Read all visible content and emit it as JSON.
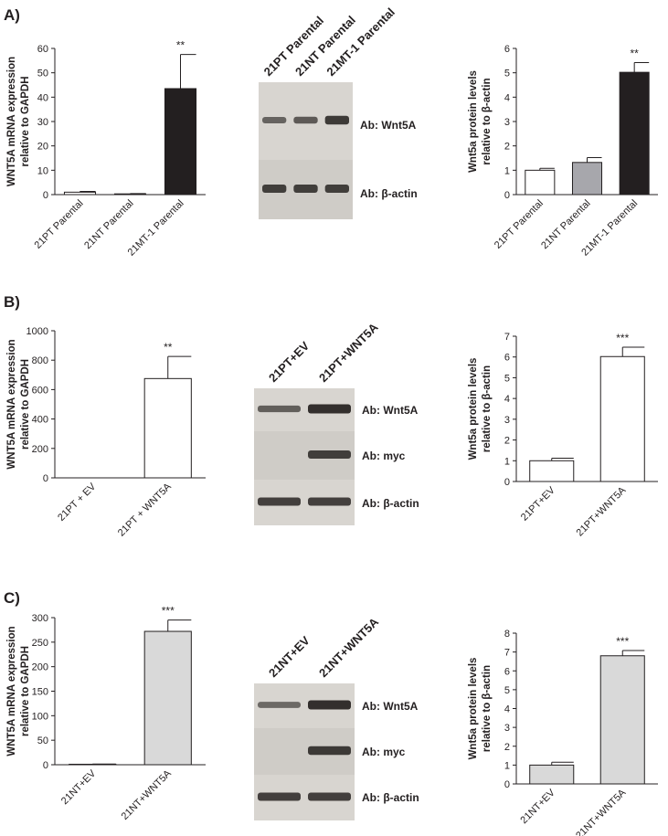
{
  "panels": [
    "A)",
    "B)",
    "C)"
  ],
  "blots": [
    {
      "lanes": [
        "21PT Parental",
        "21NT Parental",
        "21MT-1 Parental"
      ],
      "antibodies": [
        "Ab: Wnt5A",
        "Ab: β-actin"
      ]
    },
    {
      "lanes": [
        "21PT+EV",
        "21PT+WNT5A"
      ],
      "antibodies": [
        "Ab: Wnt5A",
        "Ab: myc",
        "Ab: β-actin"
      ]
    },
    {
      "lanes": [
        "21NT+EV",
        "21NT+WNT5A"
      ],
      "antibodies": [
        "Ab: Wnt5A",
        "Ab: myc",
        "Ab: β-actin"
      ]
    }
  ],
  "chart_data": [
    {
      "type": "bar",
      "ylabel": [
        "WNT5A mRNA expression",
        "relative to GAPDH"
      ],
      "categories": [
        "21PT Parental",
        "21NT Parental",
        "21MT-1 Parental"
      ],
      "values": [
        1,
        0.3,
        43.5
      ],
      "errors": [
        0.3,
        0.1,
        14
      ],
      "colors": [
        "#ffffff",
        "#ffffff",
        "#231f20"
      ],
      "annotations": [
        null,
        null,
        "**"
      ],
      "ylim": [
        0,
        60
      ],
      "yticks": [
        0,
        10,
        20,
        30,
        40,
        50,
        60
      ]
    },
    {
      "type": "bar",
      "ylabel": [
        "Wnt5a protein levels",
        "relative to β-actin"
      ],
      "categories": [
        "21PT Parental",
        "21NT Parental",
        "21MT-1 Parental"
      ],
      "values": [
        1,
        1.32,
        5.02
      ],
      "errors": [
        0.08,
        0.2,
        0.4
      ],
      "colors": [
        "#ffffff",
        "#a7a7ac",
        "#231f20"
      ],
      "annotations": [
        null,
        null,
        "**"
      ],
      "ylim": [
        0,
        6
      ],
      "yticks": [
        0,
        1,
        2,
        3,
        4,
        5,
        6
      ]
    },
    {
      "type": "bar",
      "ylabel": [
        "WNT5A mRNA expression",
        "relative to GAPDH"
      ],
      "categories": [
        "21PT + EV",
        "21PT + WNT5A"
      ],
      "values": [
        0,
        675
      ],
      "errors": [
        0,
        150
      ],
      "colors": [
        "#ffffff",
        "#ffffff"
      ],
      "annotations": [
        null,
        "**"
      ],
      "ylim": [
        0,
        1000
      ],
      "yticks": [
        0,
        200,
        400,
        600,
        800,
        1000
      ]
    },
    {
      "type": "bar",
      "ylabel": [
        "Wnt5a protein levels",
        "relative to β-actin"
      ],
      "categories": [
        "21PT+EV",
        "21PT+WNT5A"
      ],
      "values": [
        1,
        6.02
      ],
      "errors": [
        0.12,
        0.45
      ],
      "colors": [
        "#ffffff",
        "#ffffff"
      ],
      "annotations": [
        null,
        "***"
      ],
      "ylim": [
        0,
        7
      ],
      "yticks": [
        0,
        1,
        2,
        3,
        4,
        5,
        6,
        7
      ]
    },
    {
      "type": "bar",
      "ylabel": [
        "WNT5A mRNA expression",
        "relative to GAPDH"
      ],
      "categories": [
        "21NT+EV",
        "21NT+WNT5A"
      ],
      "values": [
        1,
        272
      ],
      "errors": [
        0.5,
        23
      ],
      "colors": [
        "#d9d9d9",
        "#d9d9d9"
      ],
      "annotations": [
        null,
        "***"
      ],
      "ylim": [
        0,
        300
      ],
      "yticks": [
        0,
        50,
        100,
        150,
        200,
        250,
        300
      ]
    },
    {
      "type": "bar",
      "ylabel": [
        "Wnt5a protein levels",
        "relative to β-actin"
      ],
      "categories": [
        "21NT+EV",
        "21NT+WNT5A"
      ],
      "values": [
        1,
        6.8
      ],
      "errors": [
        0.15,
        0.28
      ],
      "colors": [
        "#d9d9d9",
        "#d9d9d9"
      ],
      "annotations": [
        null,
        "***"
      ],
      "ylim": [
        0,
        8
      ],
      "yticks": [
        0,
        1,
        2,
        3,
        4,
        5,
        6,
        7,
        8
      ]
    }
  ]
}
